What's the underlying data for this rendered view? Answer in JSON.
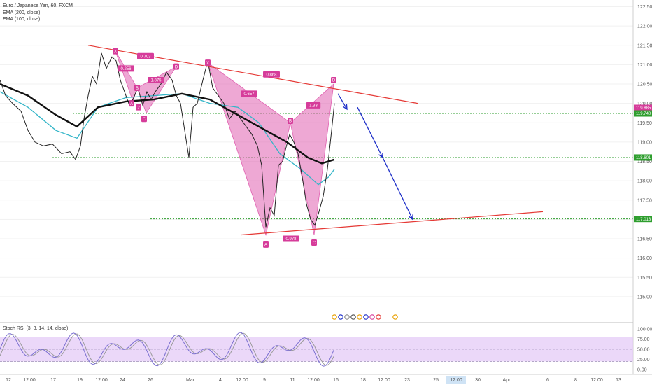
{
  "header": {
    "symbol": "Euro / Japanese Yen, 60, FXCM",
    "indicators": [
      "EMA (200, close)",
      "EMA (100, close)"
    ]
  },
  "oscillator": {
    "label": "Stoch RSI (3, 3, 14, 14, close)",
    "ticks": [
      "100.00",
      "75.00",
      "50.00",
      "25.00",
      "0.00"
    ],
    "band": [
      20,
      80
    ]
  },
  "colors": {
    "pattern_fill": "#e060b0",
    "tag": "#d63c9a",
    "trendline": "#e53935",
    "arrow": "#1e2fc8",
    "level": "#2e9e2e",
    "ema200": "#111111",
    "ema100": "#33b5c8",
    "candle": "#222222",
    "stoch_band": "#e2c8f7",
    "stoch_k": "#7a6fd0",
    "stoch_d": "#9a9a9a"
  },
  "chart_data": {
    "type": "line",
    "y_ticks": [
      "122.500",
      "122.000",
      "121.500",
      "121.000",
      "120.500",
      "120.000",
      "119.500",
      "119.000",
      "118.500",
      "118.000",
      "117.500",
      "117.000",
      "116.500",
      "116.000",
      "115.500",
      "115.000"
    ],
    "ylim": [
      114.6,
      122.6
    ],
    "x_ticks": [
      "12",
      "12:00",
      "17",
      "19",
      "12:00",
      "24",
      "26",
      "Mar",
      "4",
      "12:00",
      "9",
      "11",
      "12:00",
      "16",
      "18",
      "12:00",
      "23",
      "25",
      "12:00",
      "30",
      "Apr",
      "6",
      "8",
      "12:00",
      "13"
    ],
    "x_highlight": "12:00",
    "price_markers": [
      {
        "value": "119.885",
        "color": "#d63c9a"
      },
      {
        "value": "119.740",
        "color": "#2e9e2e"
      },
      {
        "value": "118.601",
        "color": "#2e9e2e"
      },
      {
        "value": "117.013",
        "color": "#2e9e2e"
      }
    ],
    "levels": [
      119.74,
      118.601,
      117.013
    ],
    "price_path": [
      [
        0,
        120.6
      ],
      [
        8,
        120.2
      ],
      [
        18,
        120.0
      ],
      [
        30,
        119.8
      ],
      [
        40,
        119.3
      ],
      [
        50,
        119.0
      ],
      [
        62,
        118.9
      ],
      [
        75,
        118.95
      ],
      [
        88,
        118.7
      ],
      [
        100,
        118.75
      ],
      [
        108,
        118.55
      ],
      [
        115,
        118.9
      ],
      [
        120,
        119.6
      ],
      [
        126,
        120.2
      ],
      [
        132,
        120.7
      ],
      [
        138,
        120.5
      ],
      [
        145,
        121.3
      ],
      [
        152,
        120.9
      ],
      [
        160,
        121.2
      ],
      [
        166,
        121.1
      ],
      [
        172,
        120.6
      ],
      [
        178,
        120.3
      ],
      [
        184,
        120.0
      ],
      [
        190,
        120.1
      ],
      [
        197,
        120.4
      ],
      [
        204,
        119.95
      ],
      [
        210,
        120.3
      ],
      [
        216,
        120.1
      ],
      [
        222,
        120.3
      ],
      [
        230,
        120.5
      ],
      [
        238,
        120.8
      ],
      [
        246,
        120.6
      ],
      [
        252,
        120.2
      ],
      [
        258,
        120.0
      ],
      [
        264,
        119.3
      ],
      [
        270,
        118.6
      ],
      [
        276,
        119.9
      ],
      [
        282,
        120.0
      ],
      [
        290,
        120.6
      ],
      [
        297,
        121.1
      ],
      [
        304,
        120.4
      ],
      [
        312,
        120.2
      ],
      [
        320,
        120.0
      ],
      [
        328,
        119.6
      ],
      [
        336,
        119.8
      ],
      [
        344,
        119.6
      ],
      [
        352,
        119.4
      ],
      [
        360,
        119.2
      ],
      [
        368,
        118.9
      ],
      [
        374,
        118.4
      ],
      [
        380,
        116.8
      ],
      [
        386,
        117.3
      ],
      [
        392,
        117.1
      ],
      [
        398,
        118.4
      ],
      [
        404,
        118.5
      ],
      [
        408,
        118.8
      ],
      [
        414,
        119.2
      ],
      [
        420,
        119.0
      ],
      [
        426,
        118.7
      ],
      [
        432,
        118.1
      ],
      [
        438,
        117.4
      ],
      [
        444,
        117.0
      ],
      [
        450,
        116.85
      ],
      [
        456,
        117.2
      ],
      [
        462,
        117.6
      ],
      [
        468,
        118.3
      ],
      [
        474,
        119.3
      ],
      [
        478,
        120.0
      ]
    ],
    "ema200_path": [
      [
        0,
        120.5
      ],
      [
        40,
        120.2
      ],
      [
        80,
        119.7
      ],
      [
        110,
        119.4
      ],
      [
        140,
        119.9
      ],
      [
        180,
        120.05
      ],
      [
        220,
        120.1
      ],
      [
        260,
        120.25
      ],
      [
        300,
        120.1
      ],
      [
        340,
        119.7
      ],
      [
        380,
        119.3
      ],
      [
        410,
        119.0
      ],
      [
        440,
        118.6
      ],
      [
        460,
        118.45
      ],
      [
        478,
        118.55
      ]
    ],
    "ema100_path": [
      [
        0,
        120.3
      ],
      [
        40,
        119.9
      ],
      [
        80,
        119.3
      ],
      [
        110,
        119.1
      ],
      [
        140,
        119.9
      ],
      [
        180,
        120.15
      ],
      [
        220,
        120.2
      ],
      [
        260,
        120.25
      ],
      [
        300,
        120.0
      ],
      [
        340,
        119.9
      ],
      [
        370,
        119.5
      ],
      [
        400,
        118.7
      ],
      [
        430,
        118.3
      ],
      [
        455,
        117.9
      ],
      [
        470,
        118.1
      ],
      [
        478,
        118.3
      ]
    ],
    "trendlines": [
      {
        "name": "upper",
        "from": [
          126,
          121.5
        ],
        "to": [
          597,
          120.0
        ]
      },
      {
        "name": "lower",
        "from": [
          345,
          116.6
        ],
        "to": [
          776,
          117.2
        ]
      }
    ],
    "projection": [
      [
        483,
        120.25
      ],
      [
        496,
        119.85
      ],
      [
        511,
        119.9
      ],
      [
        547,
        118.6
      ],
      [
        590,
        117.0
      ]
    ],
    "patterns": [
      {
        "name": "bat",
        "triangles": [
          [
            [
              165,
              121.35
            ],
            [
              190,
              120.05
            ],
            [
              196,
              120.4
            ]
          ],
          [
            [
              196,
              120.4
            ],
            [
              209,
              119.75
            ],
            [
              252,
              120.95
            ]
          ]
        ],
        "points": [
          {
            "label": "X",
            "at": [
              165,
              121.35
            ]
          },
          {
            "label": "A",
            "at": [
              188,
              120.0
            ]
          },
          {
            "label": "B",
            "at": [
              196,
              120.4
            ]
          },
          {
            "label": "C",
            "at": [
              206,
              119.6
            ]
          },
          {
            "label": "D",
            "at": [
              252,
              120.95
            ]
          },
          {
            "label": "2",
            "at": [
              198,
              119.9
            ]
          }
        ],
        "ratios": [
          {
            "text": "0.703",
            "at": [
              208,
              121.22
            ]
          },
          {
            "text": "0.256",
            "at": [
              180,
              120.9
            ]
          },
          {
            "text": "1.875",
            "at": [
              223,
              120.6
            ]
          }
        ]
      },
      {
        "name": "crab",
        "triangles": [
          [
            [
              297,
              121.05
            ],
            [
              380,
              116.6
            ],
            [
              415,
              119.5
            ]
          ],
          [
            [
              415,
              119.5
            ],
            [
              449,
              116.6
            ],
            [
              477,
              120.5
            ]
          ]
        ],
        "points": [
          {
            "label": "X",
            "at": [
              297,
              121.05
            ]
          },
          {
            "label": "A",
            "at": [
              380,
              116.35
            ]
          },
          {
            "label": "B",
            "at": [
              415,
              119.55
            ]
          },
          {
            "label": "C",
            "at": [
              449,
              116.4
            ]
          },
          {
            "label": "D",
            "at": [
              477,
              120.6
            ]
          }
        ],
        "ratios": [
          {
            "text": "0.868",
            "at": [
              388,
              120.75
            ]
          },
          {
            "text": "0.657",
            "at": [
              356,
              120.25
            ]
          },
          {
            "text": "1.33",
            "at": [
              448,
              119.95
            ]
          },
          {
            "text": "0.978",
            "at": [
              416,
              116.5
            ]
          }
        ]
      }
    ]
  }
}
